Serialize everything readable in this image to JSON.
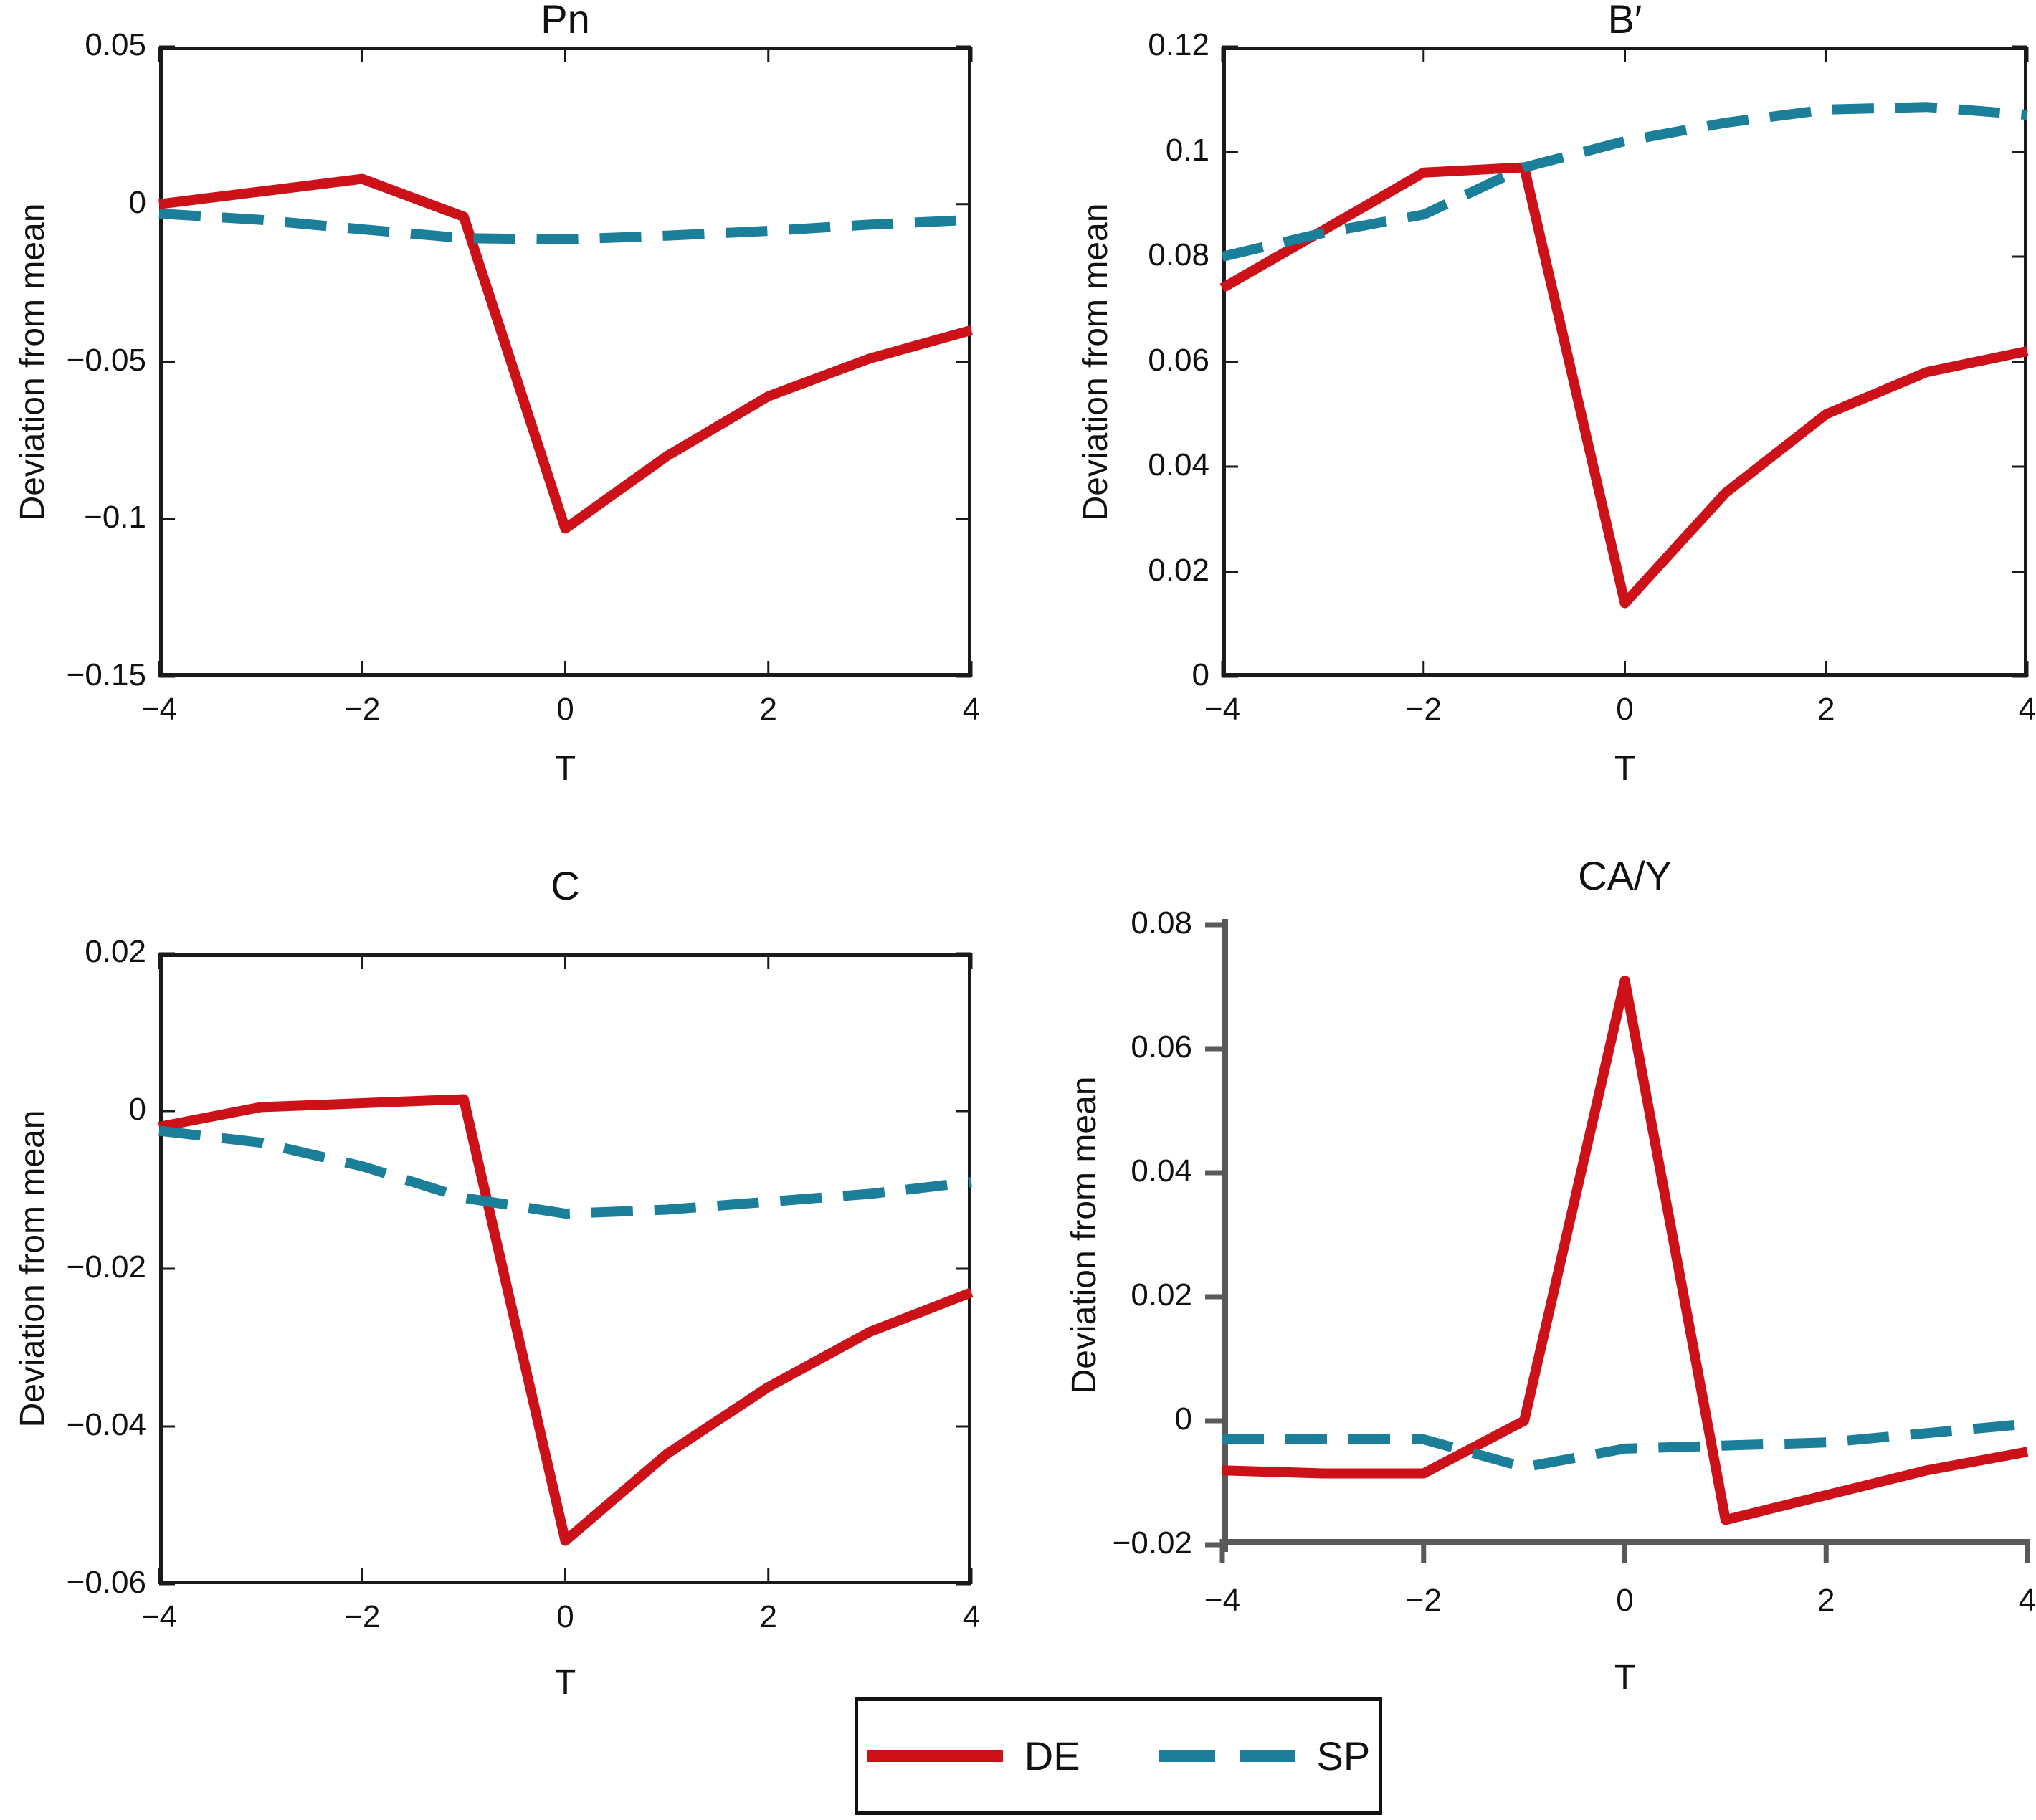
{
  "figure": {
    "background": "#ffffff",
    "series_colors": {
      "DE": "#cc1118",
      "SP": "#1b7f99"
    },
    "axis_color_box": "#1a1a1a",
    "axis_color_open": "#595959",
    "text_color": "#111111"
  },
  "legend": {
    "position": "bottom-center",
    "items": [
      {
        "label": "DE",
        "style": "solid",
        "color": "#cc1118"
      },
      {
        "label": "SP",
        "style": "dashed",
        "color": "#1b7f99"
      }
    ]
  },
  "chart_data": [
    {
      "id": "pn",
      "type": "line",
      "title": "Pn",
      "xlabel": "T",
      "ylabel": "Deviation from mean",
      "axis_style": "box",
      "grid": false,
      "x": [
        -4,
        -3,
        -2,
        -1,
        0,
        1,
        2,
        3,
        4
      ],
      "xlim": [
        -4,
        4
      ],
      "ylim": [
        -0.15,
        0.05
      ],
      "xtick_values": [
        -4,
        -2,
        0,
        2,
        4
      ],
      "xtick_labels": [
        "−4",
        "−2",
        "0",
        "2",
        "4"
      ],
      "ytick_values": [
        -0.15,
        -0.1,
        -0.05,
        0,
        0.05
      ],
      "ytick_labels": [
        "−0.15",
        "−0.1",
        "−0.05",
        "0",
        "0.05"
      ],
      "series": [
        {
          "name": "DE",
          "style": "solid",
          "values": [
            0.0,
            0.004,
            0.008,
            -0.004,
            -0.103,
            -0.08,
            -0.061,
            -0.049,
            -0.04
          ]
        },
        {
          "name": "SP",
          "style": "dashed",
          "values": [
            -0.003,
            -0.005,
            -0.008,
            -0.0108,
            -0.0112,
            -0.01,
            -0.0085,
            -0.0065,
            -0.005
          ]
        }
      ]
    },
    {
      "id": "b-prime",
      "type": "line",
      "title": "B′",
      "xlabel": "T",
      "ylabel": "Deviation from mean",
      "axis_style": "box",
      "grid": false,
      "x": [
        -4,
        -3,
        -2,
        -1,
        0,
        1,
        2,
        3,
        4
      ],
      "xlim": [
        -4,
        4
      ],
      "ylim": [
        0,
        0.12
      ],
      "xtick_values": [
        -4,
        -2,
        0,
        2,
        4
      ],
      "xtick_labels": [
        "−4",
        "−2",
        "0",
        "2",
        "4"
      ],
      "ytick_values": [
        0,
        0.02,
        0.04,
        0.06,
        0.08,
        0.1,
        0.12
      ],
      "ytick_labels": [
        "0",
        "0.02",
        "0.04",
        "0.06",
        "0.08",
        "0.1",
        "0.12"
      ],
      "series": [
        {
          "name": "DE",
          "style": "solid",
          "values": [
            0.074,
            0.085,
            0.096,
            0.097,
            0.014,
            0.035,
            0.05,
            0.058,
            0.062
          ]
        },
        {
          "name": "SP",
          "style": "dashed",
          "values": [
            0.08,
            0.0845,
            0.088,
            0.097,
            0.102,
            0.1055,
            0.108,
            0.1085,
            0.107
          ]
        }
      ]
    },
    {
      "id": "c",
      "type": "line",
      "title": "C",
      "xlabel": "T",
      "ylabel": "Deviation from mean",
      "axis_style": "box",
      "grid": false,
      "x": [
        -4,
        -3,
        -2,
        -1,
        0,
        1,
        2,
        3,
        4
      ],
      "xlim": [
        -4,
        4
      ],
      "ylim": [
        -0.06,
        0.02
      ],
      "xtick_values": [
        -4,
        -2,
        0,
        2,
        4
      ],
      "xtick_labels": [
        "−4",
        "−2",
        "0",
        "2",
        "4"
      ],
      "ytick_values": [
        -0.06,
        -0.04,
        -0.02,
        0,
        0.02
      ],
      "ytick_labels": [
        "−0.06",
        "−0.04",
        "−0.02",
        "0",
        "0.02"
      ],
      "series": [
        {
          "name": "DE",
          "style": "solid",
          "values": [
            -0.002,
            0.0005,
            0.001,
            0.0015,
            -0.0545,
            -0.0435,
            -0.035,
            -0.028,
            -0.023
          ]
        },
        {
          "name": "SP",
          "style": "dashed",
          "values": [
            -0.0025,
            -0.004,
            -0.007,
            -0.011,
            -0.013,
            -0.0125,
            -0.0115,
            -0.0105,
            -0.009
          ]
        }
      ]
    },
    {
      "id": "ca-y",
      "type": "line",
      "title": "CA/Y",
      "xlabel": "T",
      "ylabel": "Deviation from mean",
      "axis_style": "open",
      "grid": false,
      "x": [
        -4,
        -3,
        -2,
        -1,
        0,
        1,
        2,
        3,
        4
      ],
      "xlim": [
        -4,
        4
      ],
      "ylim": [
        -0.02,
        0.08
      ],
      "xtick_values": [
        -4,
        -2,
        0,
        2,
        4
      ],
      "xtick_labels": [
        "−4",
        "−2",
        "0",
        "2",
        "4"
      ],
      "ytick_values": [
        -0.02,
        0,
        0.02,
        0.04,
        0.06,
        0.08
      ],
      "ytick_labels": [
        "−0.02",
        "0",
        "0.02",
        "0.04",
        "0.06",
        "0.08"
      ],
      "series": [
        {
          "name": "DE",
          "style": "solid",
          "values": [
            -0.008,
            -0.0085,
            -0.0085,
            0.0,
            0.071,
            -0.016,
            -0.012,
            -0.008,
            -0.005
          ]
        },
        {
          "name": "SP",
          "style": "dashed",
          "values": [
            -0.003,
            -0.003,
            -0.003,
            -0.0075,
            -0.0045,
            -0.004,
            -0.0035,
            -0.002,
            -0.0005
          ]
        }
      ]
    }
  ]
}
